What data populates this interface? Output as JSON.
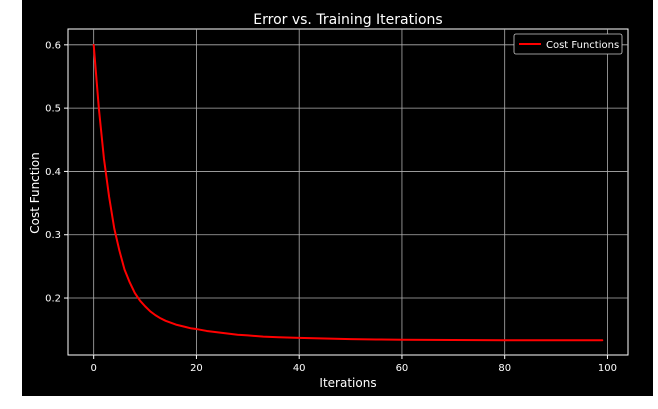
{
  "chart_data": {
    "type": "line",
    "title": "Error vs. Training Iterations",
    "xlabel": "Iterations",
    "ylabel": "Cost Function",
    "xlim": [
      -5,
      104
    ],
    "ylim": [
      0.11,
      0.625
    ],
    "xticks": [
      0,
      20,
      40,
      60,
      80,
      100
    ],
    "yticks": [
      0.2,
      0.3,
      0.4,
      0.5,
      0.6
    ],
    "xtick_labels": [
      "0",
      "20",
      "40",
      "60",
      "80",
      "100"
    ],
    "ytick_labels": [
      "0.2",
      "0.3",
      "0.4",
      "0.5",
      "0.6"
    ],
    "grid": true,
    "legend_position": "top-right",
    "series": [
      {
        "name": "Cost Functions",
        "color": "#ff0000",
        "x": [
          0,
          1,
          2,
          3,
          4,
          5,
          6,
          7,
          8,
          9,
          10,
          11,
          12,
          13,
          14,
          15,
          16,
          17,
          18,
          19,
          20,
          22,
          24,
          26,
          28,
          30,
          33,
          36,
          40,
          45,
          50,
          55,
          60,
          65,
          70,
          75,
          80,
          85,
          90,
          95,
          99
        ],
        "y": [
          0.6,
          0.5,
          0.42,
          0.36,
          0.31,
          0.275,
          0.245,
          0.225,
          0.208,
          0.196,
          0.187,
          0.179,
          0.173,
          0.168,
          0.164,
          0.161,
          0.158,
          0.156,
          0.154,
          0.152,
          0.151,
          0.148,
          0.146,
          0.144,
          0.142,
          0.141,
          0.139,
          0.138,
          0.137,
          0.136,
          0.135,
          0.1345,
          0.134,
          0.1338,
          0.1336,
          0.1335,
          0.1334,
          0.1333,
          0.1333,
          0.1332,
          0.1332
        ]
      }
    ]
  }
}
